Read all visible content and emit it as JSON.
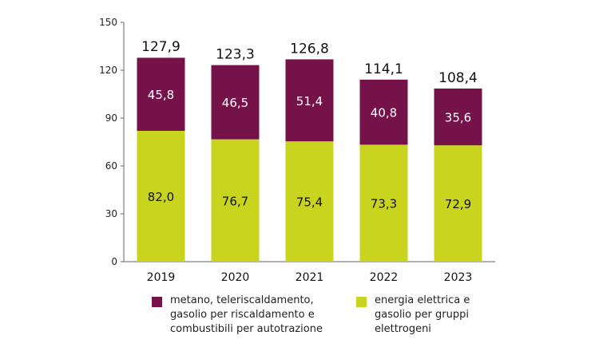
{
  "chart_data": {
    "type": "bar",
    "stacked": true,
    "categories": [
      "2019",
      "2020",
      "2021",
      "2022",
      "2023"
    ],
    "series": [
      {
        "name": "energia elettrica e gasolio per gruppi elettrogeni",
        "color": "#c8d41e",
        "label_color": "#111111",
        "values": [
          82.0,
          76.7,
          75.4,
          73.3,
          72.9
        ],
        "value_labels": [
          "82,0",
          "76,7",
          "75,4",
          "73,3",
          "72,9"
        ]
      },
      {
        "name": "metano, teleriscaldamento, gasolio per riscaldamento e combustibili per autotrazione",
        "color": "#75124a",
        "label_color": "#ffffff",
        "values": [
          45.8,
          46.5,
          51.4,
          40.8,
          35.6
        ],
        "value_labels": [
          "45,8",
          "46,5",
          "51,4",
          "40,8",
          "35,6"
        ]
      }
    ],
    "totals": [
      127.9,
      123.3,
      126.8,
      114.1,
      108.4
    ],
    "total_labels": [
      "127,9",
      "123,3",
      "126,8",
      "114,1",
      "108,4"
    ],
    "y_ticks": [
      0,
      30,
      60,
      90,
      120,
      150
    ],
    "ylim": [
      0,
      150
    ],
    "grid": false,
    "legend_position": "bottom"
  },
  "legend": [
    {
      "label_lines": [
        "metano, teleriscaldamento,",
        "gasolio per riscaldamento e",
        "combustibili per autotrazione"
      ],
      "color": "#75124a"
    },
    {
      "label_lines": [
        "energia elettrica e",
        "gasolio per gruppi",
        "elettrogeni"
      ],
      "color": "#c8d41e"
    }
  ]
}
